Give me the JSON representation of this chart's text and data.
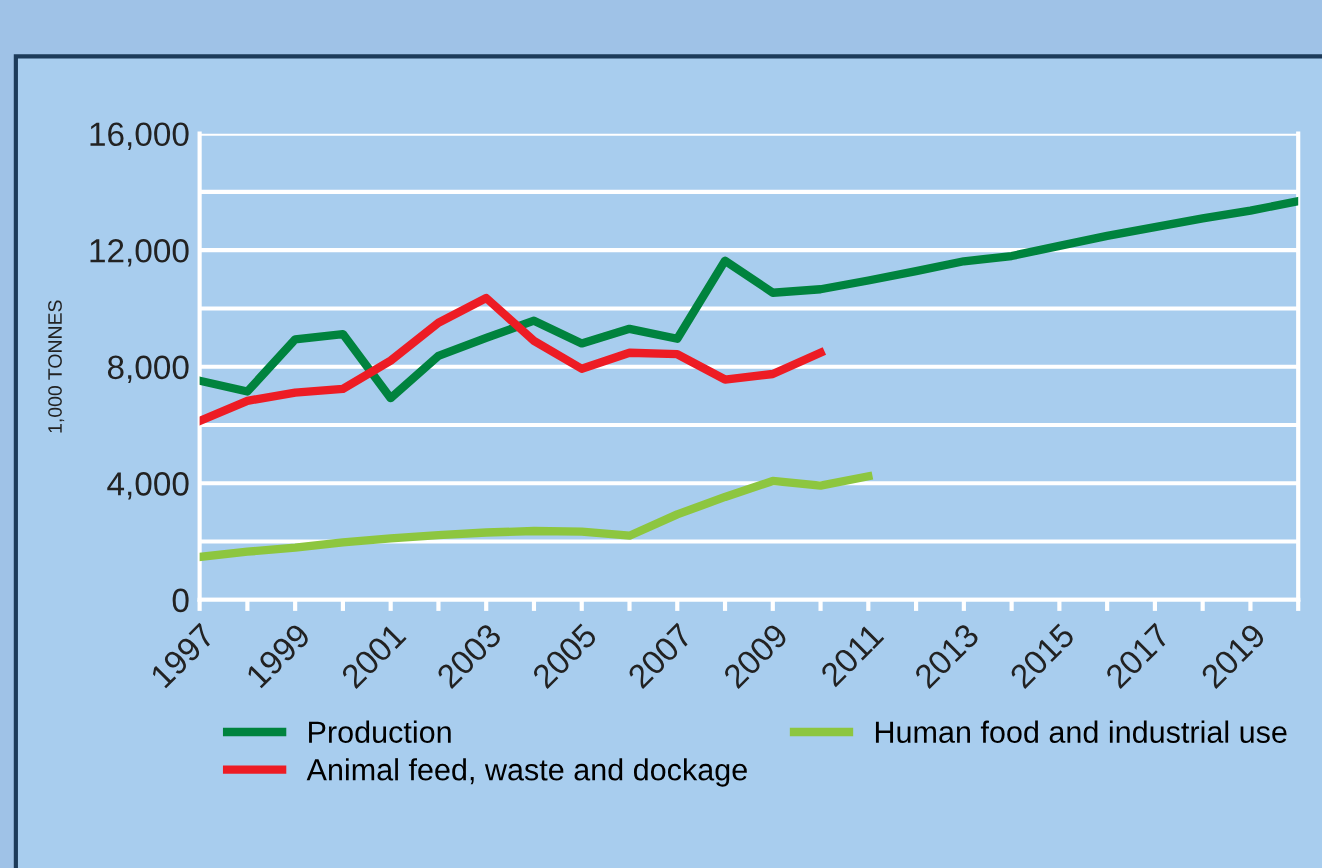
{
  "chart_data": {
    "type": "line",
    "ylabel": "1,000 TONNES",
    "xlim": [
      1997,
      2020
    ],
    "ylim": [
      0,
      16000
    ],
    "xticks": [
      1997,
      {
        "value": 1998,
        "label": null
      },
      1999,
      {
        "value": 2000,
        "label": null
      },
      2001,
      {
        "value": 2002,
        "label": null
      },
      2003,
      {
        "value": 2004,
        "label": null
      },
      2005,
      {
        "value": 2006,
        "label": null
      },
      2007,
      {
        "value": 2008,
        "label": null
      },
      2009,
      {
        "value": 2010,
        "label": null
      },
      2011,
      {
        "value": 2012,
        "label": null
      },
      2013,
      {
        "value": 2014,
        "label": null
      },
      2015,
      {
        "value": 2016,
        "label": null
      },
      2017,
      {
        "value": 2018,
        "label": null
      },
      2019,
      {
        "value": 2020,
        "label": null
      }
    ],
    "yticks": [
      {
        "value": 0,
        "label": "0"
      },
      {
        "value": 2000,
        "label": null
      },
      {
        "value": 4000,
        "label": "4,000"
      },
      {
        "value": 6000,
        "label": null
      },
      {
        "value": 8000,
        "label": "8,000"
      },
      {
        "value": 10000,
        "label": null
      },
      {
        "value": 12000,
        "label": "12,000"
      },
      {
        "value": 14000,
        "label": null
      },
      {
        "value": 16000,
        "label": "16,000"
      }
    ],
    "grid": "y",
    "legend": "bottom",
    "marker": "none",
    "line_style": "solid",
    "series": [
      {
        "name": "Production",
        "color": "#00833e",
        "x": [
          1997,
          1998,
          1999,
          2000,
          2001,
          2002,
          2003,
          2004,
          2005,
          2006,
          2007,
          2008,
          2009,
          2010,
          2011,
          2012,
          2013,
          2014,
          2015,
          2016,
          2017,
          2018,
          2019,
          2020
        ],
        "values": [
          7520,
          7150,
          8940,
          9120,
          6920,
          8370,
          8990,
          9580,
          8800,
          9300,
          8960,
          11640,
          10540,
          10660,
          10960,
          11280,
          11620,
          11800,
          12150,
          12490,
          12790,
          13090,
          13360,
          13680
        ]
      },
      {
        "name": "Animal feed, waste and dockage",
        "color": "#ed1c24",
        "x": [
          1997,
          1998,
          1999,
          2000,
          2001,
          2002,
          2003,
          2004,
          2005,
          2006,
          2007,
          2008,
          2009,
          2010
        ],
        "values": [
          6140,
          6830,
          7110,
          7240,
          8210,
          9510,
          10360,
          8890,
          7930,
          8480,
          8430,
          7560,
          7750,
          8480
        ]
      },
      {
        "name": "Human food and industrial use",
        "color": "#8dc63f",
        "x": [
          1997,
          1998,
          1999,
          2000,
          2001,
          2002,
          2003,
          2004,
          2005,
          2006,
          2007,
          2008,
          2009,
          2010,
          2011
        ],
        "values": [
          1470,
          1650,
          1790,
          1970,
          2110,
          2220,
          2310,
          2360,
          2340,
          2200,
          2930,
          3530,
          4080,
          3920,
          4240
        ]
      }
    ]
  }
}
